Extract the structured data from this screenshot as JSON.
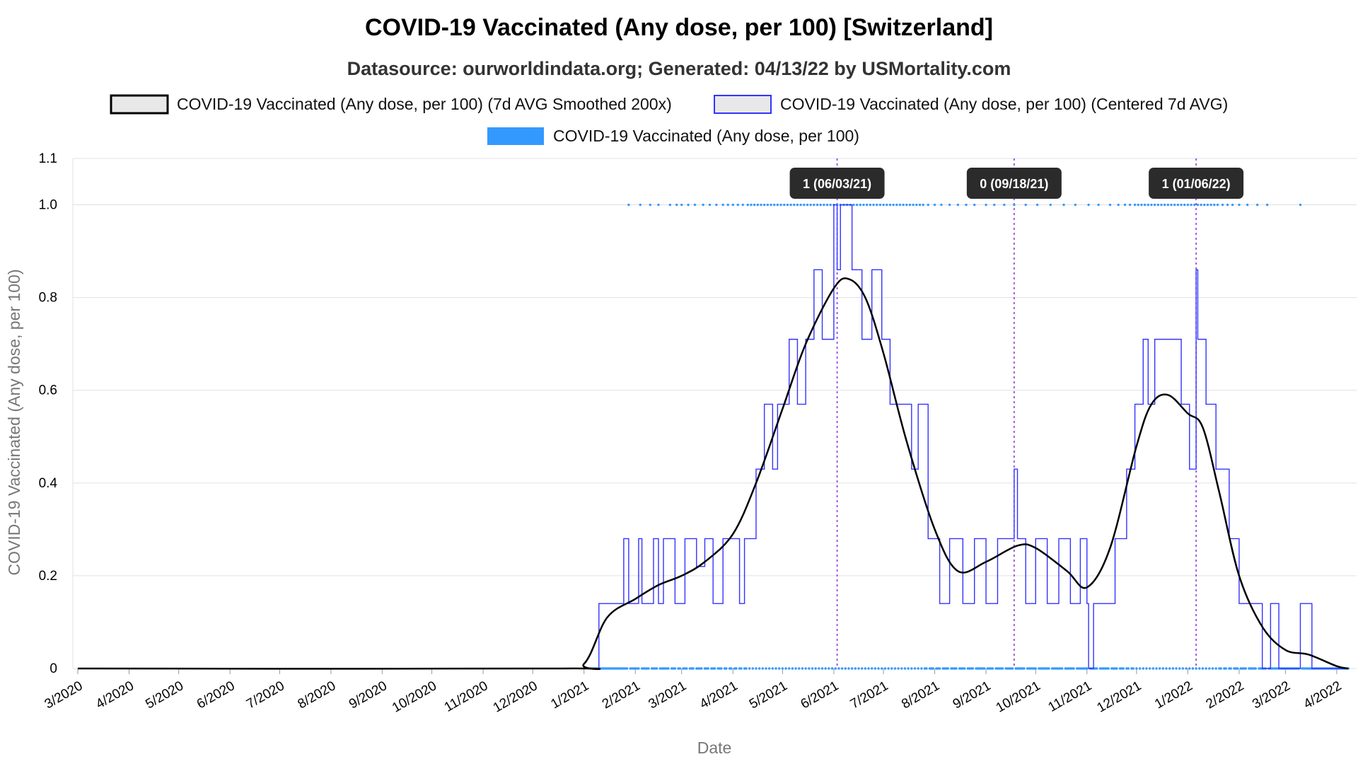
{
  "chart_data": {
    "type": "line",
    "title": "COVID-19 Vaccinated (Any dose, per 100) [Switzerland]",
    "subtitle": "Datasource: ourworldindata.org; Generated: 04/13/22 by USMortality.com",
    "xlabel": "Date",
    "ylabel": "COVID-19 Vaccinated (Any dose, per 100)",
    "ylim": [
      0,
      1.1
    ],
    "yticks": [
      "0",
      "0.2",
      "0.4",
      "0.6",
      "0.8",
      "1.0",
      "1.1"
    ],
    "ytick_values": [
      0,
      0.2,
      0.4,
      0.6,
      0.8,
      1.0,
      1.1
    ],
    "xticks": [
      "3/2020",
      "4/2020",
      "5/2020",
      "6/2020",
      "7/2020",
      "8/2020",
      "9/2020",
      "10/2020",
      "11/2020",
      "12/2020",
      "1/2021",
      "2/2021",
      "3/2021",
      "4/2021",
      "5/2021",
      "6/2021",
      "7/2021",
      "8/2021",
      "9/2021",
      "10/2021",
      "11/2021",
      "12/2021",
      "1/2022",
      "2/2022",
      "3/2022",
      "4/2022"
    ],
    "grid": true,
    "legend_position": "top",
    "series": [
      {
        "name": "COVID-19 Vaccinated (Any dose, per 100) (7d AVG Smoothed 200x)",
        "style": "line",
        "color": "#000000",
        "x": [
          "2020-03-01",
          "2020-12-15",
          "2021-01-01",
          "2021-01-15",
          "2021-02-01",
          "2021-02-15",
          "2021-03-01",
          "2021-03-15",
          "2021-04-01",
          "2021-04-15",
          "2021-05-01",
          "2021-05-15",
          "2021-06-01",
          "2021-06-10",
          "2021-06-20",
          "2021-07-01",
          "2021-07-15",
          "2021-08-01",
          "2021-08-15",
          "2021-09-01",
          "2021-09-20",
          "2021-10-01",
          "2021-10-20",
          "2021-11-01",
          "2021-11-15",
          "2021-12-01",
          "2021-12-10",
          "2021-12-20",
          "2022-01-01",
          "2022-01-10",
          "2022-01-20",
          "2022-02-01",
          "2022-02-15",
          "2022-03-01",
          "2022-03-15",
          "2022-04-01",
          "2022-04-08"
        ],
        "y": [
          0,
          0,
          0.01,
          0.11,
          0.15,
          0.18,
          0.2,
          0.23,
          0.29,
          0.4,
          0.56,
          0.7,
          0.82,
          0.84,
          0.8,
          0.68,
          0.49,
          0.3,
          0.21,
          0.23,
          0.265,
          0.26,
          0.21,
          0.175,
          0.26,
          0.48,
          0.57,
          0.59,
          0.55,
          0.52,
          0.38,
          0.2,
          0.09,
          0.04,
          0.03,
          0.005,
          0
        ]
      },
      {
        "name": "COVID-19 Vaccinated (Any dose, per 100) (Centered 7d AVG)",
        "style": "step",
        "color": "#3333ff",
        "x": [
          "2020-03-01",
          "2021-01-10",
          "2021-01-20",
          "2021-01-25",
          "2021-01-28",
          "2021-02-03",
          "2021-02-05",
          "2021-02-12",
          "2021-02-15",
          "2021-02-18",
          "2021-02-25",
          "2021-03-03",
          "2021-03-10",
          "2021-03-15",
          "2021-03-20",
          "2021-03-26",
          "2021-04-05",
          "2021-04-08",
          "2021-04-15",
          "2021-04-20",
          "2021-04-25",
          "2021-04-28",
          "2021-05-05",
          "2021-05-10",
          "2021-05-15",
          "2021-05-20",
          "2021-05-25",
          "2021-06-01",
          "2021-06-03",
          "2021-06-05",
          "2021-06-12",
          "2021-06-18",
          "2021-06-24",
          "2021-06-30",
          "2021-07-05",
          "2021-07-12",
          "2021-07-18",
          "2021-07-22",
          "2021-07-28",
          "2021-08-04",
          "2021-08-10",
          "2021-08-18",
          "2021-08-25",
          "2021-09-01",
          "2021-09-08",
          "2021-09-15",
          "2021-09-18",
          "2021-09-20",
          "2021-09-25",
          "2021-10-01",
          "2021-10-08",
          "2021-10-15",
          "2021-10-22",
          "2021-10-28",
          "2021-11-01",
          "2021-11-02",
          "2021-11-05",
          "2021-11-12",
          "2021-11-18",
          "2021-11-25",
          "2021-11-30",
          "2021-12-05",
          "2021-12-08",
          "2021-12-12",
          "2021-12-20",
          "2021-12-28",
          "2022-01-02",
          "2022-01-06",
          "2022-01-07",
          "2022-01-12",
          "2022-01-18",
          "2022-01-22",
          "2022-01-26",
          "2022-02-01",
          "2022-02-05",
          "2022-02-10",
          "2022-02-15",
          "2022-02-20",
          "2022-02-25",
          "2022-03-05",
          "2022-03-10",
          "2022-03-17",
          "2022-03-24",
          "2022-04-08"
        ],
        "y": [
          0,
          0.14,
          0.14,
          0.28,
          0.14,
          0.28,
          0.14,
          0.28,
          0.14,
          0.28,
          0.14,
          0.28,
          0.22,
          0.28,
          0.14,
          0.28,
          0.14,
          0.28,
          0.43,
          0.57,
          0.43,
          0.57,
          0.71,
          0.57,
          0.71,
          0.86,
          0.71,
          1.0,
          0.86,
          1.0,
          0.86,
          0.71,
          0.86,
          0.71,
          0.57,
          0.57,
          0.43,
          0.57,
          0.28,
          0.14,
          0.28,
          0.14,
          0.28,
          0.14,
          0.28,
          0.28,
          0.43,
          0.28,
          0.14,
          0.28,
          0.14,
          0.28,
          0.14,
          0.28,
          0.14,
          0,
          0.14,
          0.14,
          0.28,
          0.43,
          0.57,
          0.71,
          0.57,
          0.71,
          0.71,
          0.57,
          0.43,
          0.86,
          0.71,
          0.57,
          0.43,
          0.43,
          0.28,
          0.14,
          0.14,
          0.14,
          0,
          0.14,
          0,
          0,
          0.14,
          0,
          0,
          0
        ]
      },
      {
        "name": "COVID-19 Vaccinated (Any dose, per 100)",
        "style": "points",
        "color": "#3399ff",
        "points_at_one": [
          "2021-01-28",
          "2021-02-04",
          "2021-02-10",
          "2021-02-15",
          "2021-02-22",
          "2021-02-26",
          "2021-03-01",
          "2021-03-05",
          "2021-03-09",
          "2021-03-14",
          "2021-03-18",
          "2021-03-22",
          "2021-03-26",
          "2021-03-29",
          "2021-04-01",
          "2021-04-04",
          "2021-04-07",
          "2021-04-10",
          "2021-04-12",
          "2021-04-14",
          "2021-04-16",
          "2021-04-18",
          "2021-04-20",
          "2021-04-22",
          "2021-04-24",
          "2021-04-26",
          "2021-04-28",
          "2021-04-30",
          "2021-05-02",
          "2021-05-04",
          "2021-05-06",
          "2021-05-08",
          "2021-05-10",
          "2021-05-12",
          "2021-05-14",
          "2021-05-16",
          "2021-05-18",
          "2021-05-20",
          "2021-05-22",
          "2021-05-24",
          "2021-05-26",
          "2021-05-28",
          "2021-05-30",
          "2021-06-01",
          "2021-06-03",
          "2021-06-05",
          "2021-06-07",
          "2021-06-09",
          "2021-06-11",
          "2021-06-13",
          "2021-06-15",
          "2021-06-17",
          "2021-06-19",
          "2021-06-21",
          "2021-06-23",
          "2021-06-25",
          "2021-06-27",
          "2021-06-29",
          "2021-07-01",
          "2021-07-03",
          "2021-07-05",
          "2021-07-07",
          "2021-07-09",
          "2021-07-11",
          "2021-07-13",
          "2021-07-15",
          "2021-07-17",
          "2021-07-19",
          "2021-07-21",
          "2021-07-23",
          "2021-07-25",
          "2021-07-28",
          "2021-08-01",
          "2021-08-05",
          "2021-08-10",
          "2021-08-15",
          "2021-08-20",
          "2021-08-25",
          "2021-09-01",
          "2021-09-06",
          "2021-09-12",
          "2021-09-18",
          "2021-09-25",
          "2021-10-02",
          "2021-10-10",
          "2021-10-18",
          "2021-10-25",
          "2021-11-02",
          "2021-11-08",
          "2021-11-15",
          "2021-11-20",
          "2021-11-24",
          "2021-11-27",
          "2021-11-30",
          "2021-12-02",
          "2021-12-04",
          "2021-12-06",
          "2021-12-08",
          "2021-12-10",
          "2021-12-12",
          "2021-12-14",
          "2021-12-16",
          "2021-12-18",
          "2021-12-20",
          "2021-12-22",
          "2021-12-24",
          "2021-12-26",
          "2021-12-28",
          "2021-12-30",
          "2022-01-01",
          "2022-01-03",
          "2022-01-05",
          "2022-01-07",
          "2022-01-09",
          "2022-01-11",
          "2022-01-13",
          "2022-01-15",
          "2022-01-17",
          "2022-01-19",
          "2022-01-22",
          "2022-01-25",
          "2022-01-28",
          "2022-02-01",
          "2022-02-06",
          "2022-02-12",
          "2022-02-18",
          "2022-03-10"
        ],
        "other_points_at": 0
      }
    ],
    "annotations": [
      {
        "date": "2021-06-03",
        "label": "1 (06/03/21)"
      },
      {
        "date": "2021-09-18",
        "label": "0 (09/18/21)"
      },
      {
        "date": "2022-01-06",
        "label": "1 (01/06/22)"
      }
    ]
  }
}
